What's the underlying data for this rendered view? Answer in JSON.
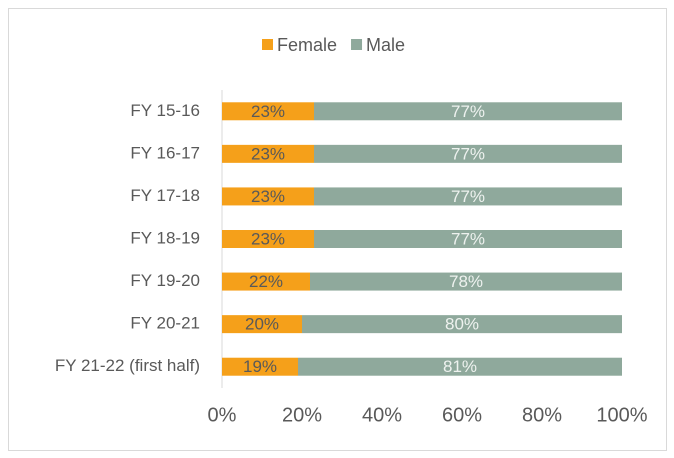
{
  "chart_data": {
    "type": "stacked-bar",
    "orientation": "horizontal",
    "categories": [
      "FY 15-16",
      "FY 16-17",
      "FY 17-18",
      "FY 18-19",
      "FY 19-20",
      "FY 20-21",
      "FY 21-22 (first half)"
    ],
    "series": [
      {
        "name": "Female",
        "color": "#f5a01a",
        "values": [
          23,
          23,
          23,
          23,
          22,
          20,
          19
        ],
        "value_labels": [
          "23%",
          "23%",
          "23%",
          "23%",
          "22%",
          "20%",
          "19%"
        ]
      },
      {
        "name": "Male",
        "color": "#8fa99c",
        "values": [
          77,
          77,
          77,
          77,
          78,
          80,
          81
        ],
        "value_labels": [
          "77%",
          "77%",
          "77%",
          "77%",
          "78%",
          "80%",
          "81%"
        ]
      }
    ],
    "xlim": [
      0,
      100
    ],
    "xticks": [
      {
        "value": 0,
        "label": "0%"
      },
      {
        "value": 20,
        "label": "20%"
      },
      {
        "value": 40,
        "label": "40%"
      },
      {
        "value": 60,
        "label": "60%"
      },
      {
        "value": 80,
        "label": "80%"
      },
      {
        "value": 100,
        "label": "100%"
      }
    ],
    "legend": "top"
  }
}
